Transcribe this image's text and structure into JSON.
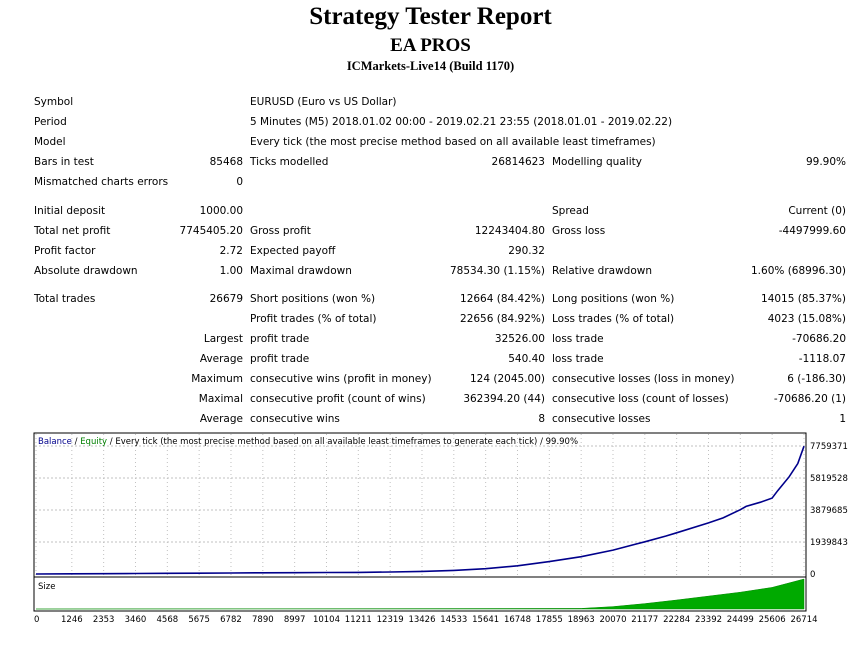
{
  "header": {
    "title": "Strategy Tester Report",
    "subtitle": "EA PROS",
    "server": "ICMarkets-Live14 (Build 1170)"
  },
  "info": {
    "symbol_label": "Symbol",
    "symbol_value": "EURUSD (Euro vs US Dollar)",
    "period_label": "Period",
    "period_value": "5 Minutes (M5) 2018.01.02 00:00 - 2019.02.21 23:55 (2018.01.01 - 2019.02.22)",
    "model_label": "Model",
    "model_value": "Every tick (the most precise method based on all available least timeframes)",
    "bars_label": "Bars in test",
    "bars_value": "85468",
    "ticks_label": "Ticks modelled",
    "ticks_value": "26814623",
    "quality_label": "Modelling quality",
    "quality_value": "99.90%",
    "mismatch_label": "Mismatched charts errors",
    "mismatch_value": "0"
  },
  "stats": {
    "initial_deposit_label": "Initial deposit",
    "initial_deposit_value": "1000.00",
    "spread_label": "Spread",
    "spread_value": "Current (0)",
    "total_net_profit_label": "Total net profit",
    "total_net_profit_value": "7745405.20",
    "gross_profit_label": "Gross profit",
    "gross_profit_value": "12243404.80",
    "gross_loss_label": "Gross loss",
    "gross_loss_value": "-4497999.60",
    "profit_factor_label": "Profit factor",
    "profit_factor_value": "2.72",
    "expected_payoff_label": "Expected payoff",
    "expected_payoff_value": "290.32",
    "absolute_dd_label": "Absolute drawdown",
    "absolute_dd_value": "1.00",
    "maximal_dd_label": "Maximal drawdown",
    "maximal_dd_value": "78534.30 (1.15%)",
    "relative_dd_label": "Relative drawdown",
    "relative_dd_value": "1.60% (68996.30)"
  },
  "trades": {
    "total_trades_label": "Total trades",
    "total_trades_value": "26679",
    "short_label": "Short positions (won %)",
    "short_value": "12664 (84.42%)",
    "long_label": "Long positions (won %)",
    "long_value": "14015 (85.37%)",
    "profit_trades_label": "Profit trades (% of total)",
    "profit_trades_value": "22656 (84.92%)",
    "loss_trades_label": "Loss trades (% of total)",
    "loss_trades_value": "4023 (15.08%)",
    "largest_prefix": "Largest",
    "largest_profit_label": "profit trade",
    "largest_profit_value": "32526.00",
    "largest_loss_label": "loss trade",
    "largest_loss_value": "-70686.20",
    "average_prefix": "Average",
    "average_profit_label": "profit trade",
    "average_profit_value": "540.40",
    "average_loss_label": "loss trade",
    "average_loss_value": "-1118.07",
    "maximum_prefix": "Maximum",
    "max_wins_label": "consecutive wins (profit in money)",
    "max_wins_value": "124 (2045.00)",
    "max_losses_label": "consecutive losses (loss in money)",
    "max_losses_value": "6 (-186.30)",
    "maximal_prefix": "Maximal",
    "maximal_profit_label": "consecutive profit (count of wins)",
    "maximal_profit_value": "362394.20 (44)",
    "maximal_loss_label": "consecutive loss (count of losses)",
    "maximal_loss_value": "-70686.20 (1)",
    "average2_prefix": "Average",
    "avg_wins_label": "consecutive wins",
    "avg_wins_value": "8",
    "avg_losses_label": "consecutive losses",
    "avg_losses_value": "1"
  },
  "chart_legend": {
    "balance": "Balance",
    "sep": " / ",
    "equity": "Equity",
    "rest": " / Every tick (the most precise method based on all available least timeframes to generate each tick) / 99.90%",
    "size_label": "Size"
  },
  "colors": {
    "balance_line": "#00008b",
    "equity_line": "#008000",
    "size_fill": "#00aa00",
    "grid": "#c0c0c0"
  },
  "chart_data": {
    "type": "line",
    "title": "",
    "xlabel": "",
    "ylabel": "",
    "y_ticks": [
      "7759371",
      "5819528",
      "3879685",
      "1939843",
      "0"
    ],
    "ylim": [
      0,
      7759371
    ],
    "xlim": [
      0,
      26714
    ],
    "x_ticks": [
      "0",
      "1246",
      "2353",
      "3460",
      "4568",
      "5675",
      "6782",
      "7890",
      "8997",
      "10104",
      "11211",
      "12319",
      "13426",
      "14533",
      "15641",
      "16748",
      "17855",
      "18963",
      "20070",
      "21177",
      "22284",
      "23392",
      "24499",
      "25606",
      "26714"
    ],
    "series": [
      {
        "name": "Balance",
        "x": [
          0,
          1246,
          2353,
          3460,
          4568,
          5675,
          6782,
          7890,
          8997,
          10104,
          11211,
          12319,
          13426,
          14533,
          15641,
          16748,
          17855,
          18963,
          20070,
          21177,
          21900,
          22284,
          23392,
          23900,
          24499,
          24700,
          25200,
          25606,
          25800,
          26200,
          26500,
          26714
        ],
        "y": [
          1000,
          10000,
          20000,
          30000,
          40000,
          50000,
          60000,
          70000,
          80000,
          90000,
          100000,
          120000,
          160000,
          220000,
          320000,
          500000,
          750000,
          1050000,
          1450000,
          1950000,
          2300000,
          2500000,
          3100000,
          3400000,
          3900000,
          4100000,
          4350000,
          4600000,
          5050000,
          5900000,
          6700000,
          7745405
        ]
      },
      {
        "name": "Equity",
        "x": [],
        "y": []
      },
      {
        "name": "Size",
        "x": [
          0,
          18963,
          20070,
          21177,
          22284,
          23392,
          24499,
          25606,
          26714
        ],
        "y": [
          0,
          0.02,
          0.08,
          0.18,
          0.3,
          0.43,
          0.56,
          0.72,
          1.0
        ]
      }
    ],
    "grid": true,
    "legend": "top-left"
  }
}
